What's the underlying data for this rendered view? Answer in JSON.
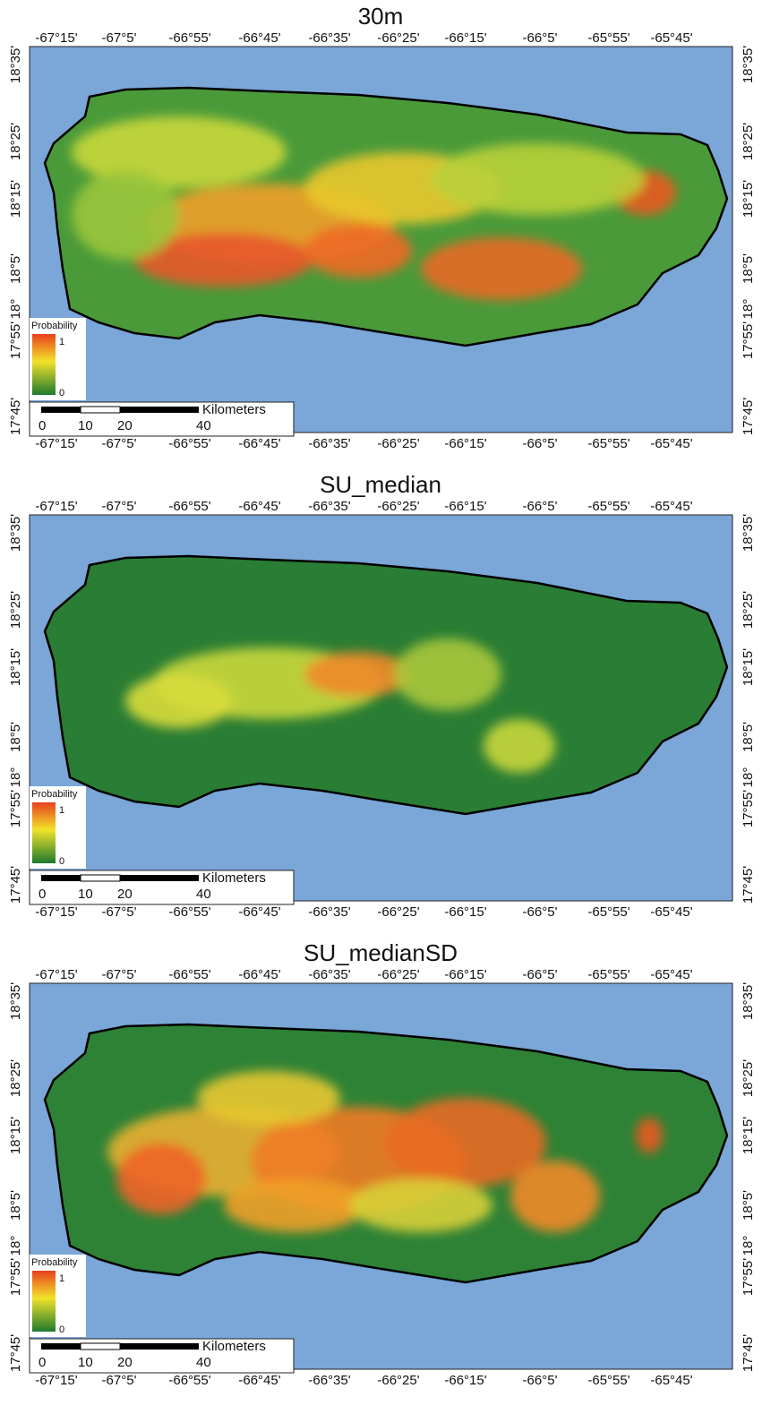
{
  "panels": [
    {
      "title": "30m"
    },
    {
      "title": "SU_median"
    },
    {
      "title": "SU_medianSD"
    }
  ],
  "lon_labels": [
    "-67°15'",
    "-67°5'",
    "-66°55'",
    "-66°45'",
    "-66°35'",
    "-66°25'",
    "-66°15'",
    "-66°5'",
    "-65°55'",
    "-65°45'"
  ],
  "lat_labels": [
    "18°35'",
    "18°25'",
    "18°15'",
    "18°5'",
    "18°",
    "17°55'",
    "17°45'"
  ],
  "legend": {
    "title": "Probability",
    "max": "1",
    "min": "0"
  },
  "scale_bar": {
    "unit": "Kilometers",
    "ticks": [
      "0",
      "10",
      "20",
      "40"
    ]
  }
}
